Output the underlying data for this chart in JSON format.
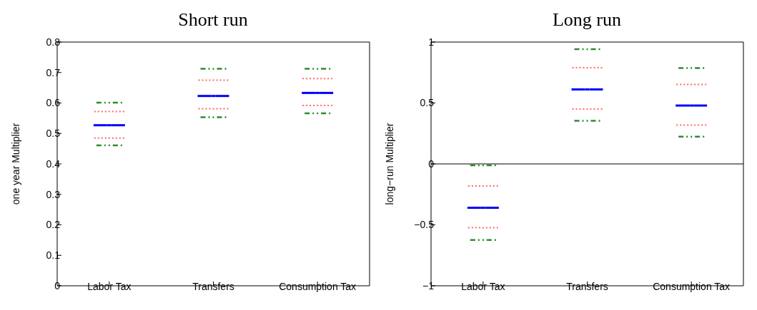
{
  "chart_data": [
    {
      "type": "scatter",
      "title": "Short run",
      "ylabel": "one year Multiplier",
      "categories": [
        "Labor Tax",
        "Transfers",
        "Consumption Tax"
      ],
      "ylim": [
        0,
        0.8
      ],
      "yticks": [
        0,
        0.1,
        0.2,
        0.3,
        0.4,
        0.5,
        0.6,
        0.7,
        0.8
      ],
      "grid": false,
      "series": [
        {
          "color": "#2e8b2e",
          "line_style": "dashed",
          "values": [
            0.601,
            0.712,
            0.712
          ]
        },
        {
          "color": "#ff6666",
          "line_style": "dotted",
          "values": [
            0.572,
            0.675,
            0.68
          ]
        },
        {
          "color": "#0000ff",
          "line_style": "solid",
          "values": [
            0.527,
            0.623,
            0.633
          ]
        },
        {
          "color": "#ff6666",
          "line_style": "dotted",
          "values": [
            0.485,
            0.581,
            0.592
          ]
        },
        {
          "color": "#2e8b2e",
          "line_style": "dashed",
          "values": [
            0.461,
            0.553,
            0.566
          ]
        }
      ]
    },
    {
      "type": "scatter",
      "title": "Long run",
      "ylabel": "long−run Multiplier",
      "categories": [
        "Labor Tax",
        "Transfers",
        "Consumption Tax"
      ],
      "ylim": [
        -1,
        1
      ],
      "yticks": [
        {
          "value": -1,
          "label": "−1"
        },
        {
          "value": -0.5,
          "label": "−0.5"
        },
        0,
        0.5,
        1
      ],
      "grid": false,
      "ref_lines": [
        {
          "axis": "y",
          "value": 0,
          "color": "#000000"
        }
      ],
      "series": [
        {
          "color": "#2e8b2e",
          "line_style": "dashed",
          "values": [
            -0.012,
            0.941,
            0.787
          ]
        },
        {
          "color": "#ff6666",
          "line_style": "dotted",
          "values": [
            -0.182,
            0.789,
            0.652
          ]
        },
        {
          "color": "#0000ff",
          "line_style": "solid",
          "values": [
            -0.36,
            0.611,
            0.479
          ]
        },
        {
          "color": "#ff6666",
          "line_style": "dotted",
          "values": [
            -0.524,
            0.45,
            0.319
          ]
        },
        {
          "color": "#2e8b2e",
          "line_style": "dashed",
          "values": [
            -0.624,
            0.354,
            0.223
          ]
        }
      ]
    }
  ]
}
